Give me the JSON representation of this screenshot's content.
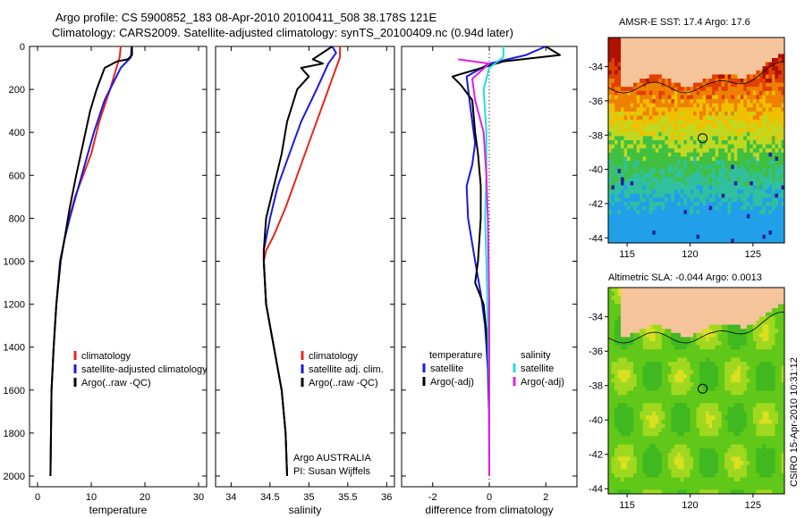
{
  "header": {
    "line1": "Argo profile: CS 5900852_183 08-Apr-2010 20100411_508 38.178S 121E",
    "line2": "Climatology: CARS2009. Satellite-adjusted climatology: synTS_20100409.nc (0.94d later)"
  },
  "colors": {
    "climatology": "#e8261c",
    "satellite_adj": "#1a1adf",
    "argo": "#000000",
    "satellite_salinity": "#22dddd",
    "argo_salinity_adj": "#e020e0"
  },
  "chart_data": [
    {
      "type": "line",
      "id": "temperature-panel",
      "xlabel": "temperature",
      "xlim": [
        -1.5,
        31.5
      ],
      "xticks": [
        "0",
        "10",
        "20",
        "30"
      ],
      "ylim": [
        2050,
        0
      ],
      "yticks": [
        "0",
        "200",
        "400",
        "600",
        "800",
        "1000",
        "1200",
        "1400",
        "1600",
        "1800",
        "2000"
      ],
      "legend": [
        "climatology",
        "satellite-adjusted climatology",
        "Argo(..raw -QC)"
      ],
      "series": [
        {
          "name": "climatology",
          "color": "#e8261c",
          "x": [
            15.5,
            15.3,
            13.5,
            11.5,
            10.0,
            8.5,
            7.0,
            5.9,
            5.0,
            4.2,
            3.5,
            3.0,
            2.8,
            2.6,
            2.5,
            2.4
          ],
          "y": [
            0,
            50,
            200,
            350,
            500,
            600,
            700,
            800,
            900,
            1000,
            1200,
            1400,
            1500,
            1600,
            1800,
            2000
          ]
        },
        {
          "name": "satellite-adjusted climatology",
          "color": "#1a1adf",
          "x": [
            17.5,
            17.4,
            15.5,
            12.5,
            10.5,
            8.8,
            7.1,
            6.0,
            5.0,
            4.2,
            3.5,
            3.0,
            2.8,
            2.6,
            2.5,
            2.4
          ],
          "y": [
            0,
            50,
            100,
            250,
            400,
            550,
            700,
            800,
            900,
            1000,
            1200,
            1400,
            1500,
            1600,
            1800,
            2000
          ]
        },
        {
          "name": "Argo(..raw -QC)",
          "color": "#000000",
          "x": [
            17.6,
            17.6,
            16.8,
            14.8,
            12.5,
            11.0,
            9.8,
            8.5,
            7.2,
            6.0,
            5.0,
            4.3,
            3.5,
            3.0,
            2.8,
            2.6,
            2.5,
            2.4
          ],
          "y": [
            0,
            40,
            60,
            70,
            100,
            200,
            300,
            450,
            600,
            750,
            900,
            1000,
            1200,
            1400,
            1500,
            1600,
            1800,
            2000
          ]
        }
      ]
    },
    {
      "type": "line",
      "id": "salinity-panel",
      "xlabel": "salinity",
      "xlim": [
        33.8,
        36.1
      ],
      "xticks": [
        "34",
        "34.5",
        "35",
        "35.5",
        "36"
      ],
      "ylim": [
        2050,
        0
      ],
      "legend": [
        "climatology",
        "satellite adj. clim.",
        "Argo(..raw -QC)"
      ],
      "annotations": [
        "Argo AUSTRALIA",
        "PI: Susan Wijffels"
      ],
      "series": [
        {
          "name": "climatology",
          "color": "#e8261c",
          "x": [
            35.4,
            35.4,
            35.3,
            35.15,
            35.0,
            34.85,
            34.7,
            34.55,
            34.45,
            34.42,
            34.45,
            34.55,
            34.65,
            34.7,
            34.72
          ],
          "y": [
            0,
            50,
            150,
            300,
            450,
            600,
            750,
            880,
            950,
            1000,
            1200,
            1400,
            1600,
            1800,
            2000
          ]
        },
        {
          "name": "satellite adj. clim.",
          "color": "#1a1adf",
          "x": [
            35.3,
            35.35,
            35.25,
            35.1,
            34.9,
            34.75,
            34.6,
            34.5,
            34.42,
            34.42,
            34.45,
            34.55,
            34.65,
            34.7,
            34.72
          ],
          "y": [
            0,
            30,
            80,
            200,
            350,
            500,
            650,
            800,
            950,
            1000,
            1200,
            1400,
            1600,
            1800,
            2000
          ]
        },
        {
          "name": "Argo(..raw -QC)",
          "color": "#000000",
          "x": [
            35.3,
            35.05,
            35.18,
            34.9,
            35.0,
            34.85,
            34.72,
            34.65,
            34.55,
            34.45,
            34.42,
            34.42,
            34.45,
            34.55,
            34.65,
            34.7,
            34.72
          ],
          "y": [
            0,
            60,
            80,
            100,
            140,
            200,
            350,
            500,
            650,
            800,
            950,
            1000,
            1200,
            1400,
            1600,
            1800,
            2000
          ]
        }
      ]
    },
    {
      "type": "line",
      "id": "difference-panel",
      "xlabel": "difference from climatology",
      "xlim": [
        -3.1,
        3.1
      ],
      "xticks": [
        "-2",
        "0",
        "2"
      ],
      "ylim": [
        2050,
        0
      ],
      "legend_groups": [
        {
          "heading": "temperature",
          "entries": [
            "satellite",
            "Argo(-adj)"
          ]
        },
        {
          "heading": "salinity",
          "entries": [
            "satellite",
            "Argo(-adj)"
          ]
        }
      ],
      "series": [
        {
          "name": "temperature satellite",
          "color": "#1a1adf",
          "x": [
            2.0,
            1.3,
            0.0,
            -0.8,
            -0.7,
            -0.6,
            -0.5,
            -0.6,
            -0.8,
            -0.75,
            -0.5,
            -0.3,
            -0.15,
            -0.05,
            -0.01,
            0.0
          ],
          "y": [
            0,
            40,
            80,
            140,
            250,
            350,
            450,
            550,
            650,
            800,
            1000,
            1150,
            1300,
            1500,
            1700,
            2000
          ]
        },
        {
          "name": "temperature Argo(-adj)",
          "color": "#000000",
          "x": [
            2.0,
            2.5,
            0.5,
            -1.3,
            -1.0,
            -0.6,
            -0.5,
            -0.4,
            -0.3,
            -0.3,
            -0.4,
            -0.5,
            -0.2,
            -0.05,
            0.0,
            0.0
          ],
          "y": [
            0,
            40,
            70,
            140,
            180,
            250,
            400,
            500,
            650,
            800,
            1000,
            1100,
            1200,
            1400,
            1600,
            2000
          ]
        },
        {
          "name": "salinity satellite",
          "color": "#22dddd",
          "x": [
            0.5,
            0.5,
            0.0,
            -0.2,
            -0.1,
            -0.1,
            -0.15,
            -0.1,
            -0.05,
            0.0,
            0.0
          ],
          "y": [
            0,
            50,
            100,
            200,
            400,
            600,
            800,
            1000,
            1300,
            1600,
            2000
          ]
        },
        {
          "name": "salinity Argo(-adj)",
          "color": "#e020e0",
          "x": [
            -1.1,
            0.0,
            -0.6,
            -0.5,
            -0.2,
            -0.1,
            -0.05,
            0.0,
            0.0
          ],
          "y": [
            60,
            80,
            150,
            250,
            400,
            600,
            800,
            1200,
            2000
          ]
        }
      ]
    },
    {
      "type": "heatmap",
      "id": "sst-map",
      "title": "AMSR-E SST: 17.4  Argo: 17.6",
      "xticks": [
        "115",
        "120",
        "125"
      ],
      "yticks": [
        "-34",
        "-36",
        "-38",
        "-40",
        "-42",
        "-44"
      ],
      "xlim": [
        113.5,
        127.5
      ],
      "ylim": [
        -44.3,
        -32.3
      ],
      "marker": {
        "lon": 121.0,
        "lat": -38.18
      }
    },
    {
      "type": "heatmap",
      "id": "sla-map",
      "title": "Altimetric SLA: -0.044  Argo: 0.0013",
      "xticks": [
        "115",
        "120",
        "125"
      ],
      "yticks": [
        "-34",
        "-36",
        "-38",
        "-40",
        "-42",
        "-44"
      ],
      "xlim": [
        113.5,
        127.5
      ],
      "ylim": [
        -44.3,
        -32.3
      ],
      "marker": {
        "lon": 121.0,
        "lat": -38.18
      }
    }
  ],
  "footer": {
    "vertical_stamp": "CSIRO 15-Apr-2010 10:31:12"
  }
}
